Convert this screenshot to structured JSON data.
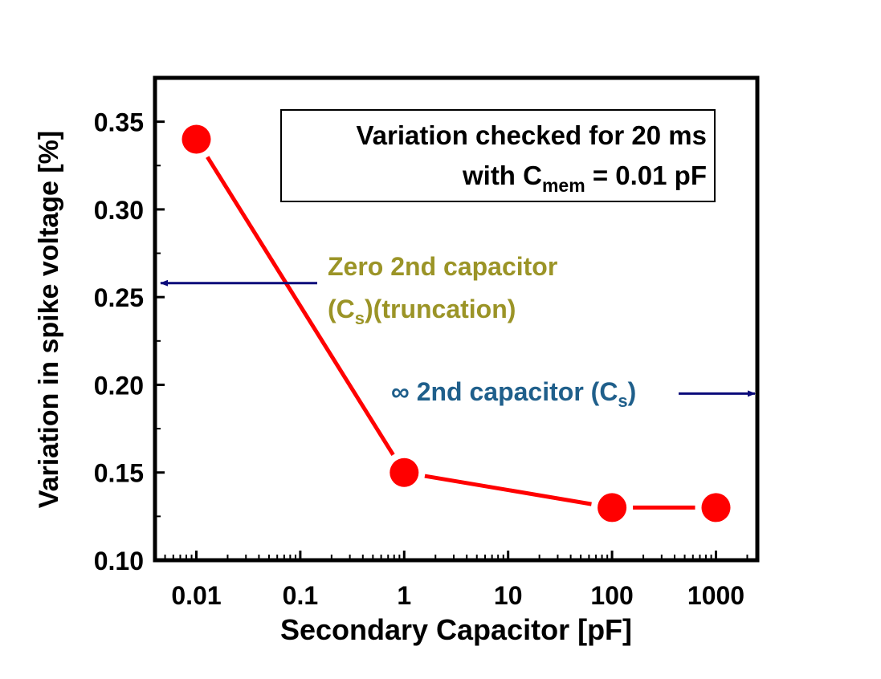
{
  "chart_data": {
    "type": "line",
    "title": "",
    "xlabel": "Secondary Capacitor [pF]",
    "ylabel": "Variation in spike voltage [%]",
    "x_scale": "log",
    "xlim": [
      0.004,
      2500
    ],
    "ylim": [
      0.1,
      0.375
    ],
    "x_ticks": [
      0.01,
      0.1,
      1,
      10,
      100,
      1000
    ],
    "x_tick_labels": [
      "0.01",
      "0.1",
      "1",
      "10",
      "100",
      "1000"
    ],
    "y_ticks": [
      0.1,
      0.15,
      0.2,
      0.25,
      0.3,
      0.35
    ],
    "y_tick_labels": [
      "0.10",
      "0.15",
      "0.20",
      "0.25",
      "0.30",
      "0.35"
    ],
    "grid": false,
    "series": [
      {
        "x": [
          0.01,
          1,
          100,
          1000
        ],
        "y": [
          0.34,
          0.15,
          0.13,
          0.13
        ],
        "color": "#ff0000"
      }
    ],
    "note_box": {
      "line1": "Variation checked for 20 ms",
      "line2_prefix": "with C",
      "line2_sub": "mem",
      "line2_suffix": " = 0.01 pF"
    },
    "annotations": {
      "zero_cap": {
        "line1": "Zero 2nd capacitor",
        "line2_open": "(C",
        "line2_sub": "s",
        "line2_close": ")(truncation)",
        "color": "#9b9427",
        "arrow_y": 0.258,
        "arrow_direction": "left"
      },
      "inf_cap": {
        "text_prefix": "∞ 2nd capacitor (C",
        "text_sub": "s",
        "text_close": ")",
        "color": "#1f5f8b",
        "arrow_y": 0.195,
        "arrow_direction": "right"
      },
      "arrow_color": "#0a0a7a"
    }
  }
}
